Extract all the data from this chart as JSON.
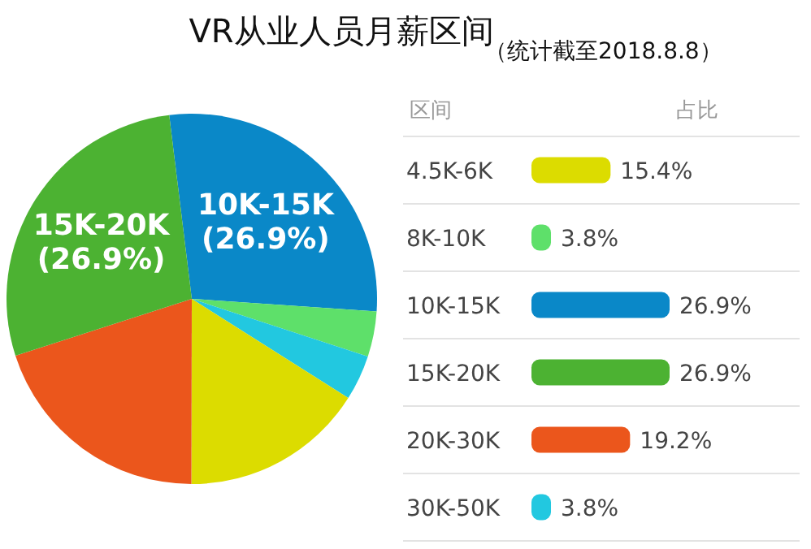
{
  "chart_data": [
    {
      "type": "pie",
      "title": "VR从业人员月薪区间",
      "categories": [
        "10K-15K",
        null,
        null,
        null,
        null,
        "15K-20K"
      ],
      "values": [
        26.9,
        3.8,
        3.8,
        15.4,
        19.2,
        26.9
      ],
      "colors": [
        "#0a88c8",
        "#5ee06a",
        "#22c8e0",
        "#dcdc00",
        "#eb561c",
        "#4cb232"
      ],
      "value_labels": [
        "(26.9%)",
        null,
        null,
        null,
        null,
        "(26.9%)"
      ]
    },
    {
      "type": "bar",
      "orientation": "horizontal",
      "subtitle": "（统计截至2018.8.8）",
      "annotations": [
        "区间",
        "占比"
      ],
      "categories": [
        "4.5K-6K",
        "8K-10K",
        "10K-15K",
        "15K-20K",
        "20K-30K",
        "30K-50K"
      ],
      "values": [
        15.4,
        3.8,
        26.9,
        26.9,
        19.2,
        3.8
      ],
      "colors": [
        "#dcdc00",
        "#5ee06a",
        "#0a88c8",
        "#4cb232",
        "#eb561c",
        "#22c8e0"
      ],
      "value_labels": [
        "15.4%",
        "3.8%",
        "26.9%",
        "26.9%",
        "19.2%",
        "3.8%"
      ]
    }
  ]
}
